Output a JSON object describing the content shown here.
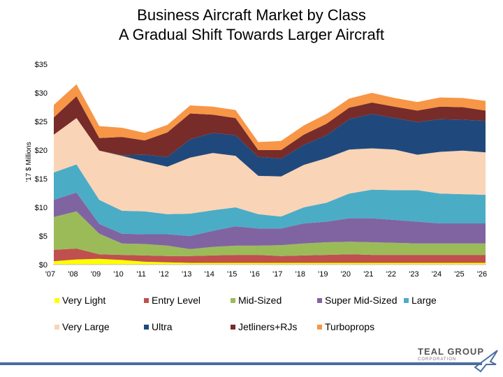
{
  "chart_data": {
    "type": "area",
    "stacked": true,
    "title": "Business Aircraft Market by Class",
    "subtitle": "A Gradual Shift Towards Larger Aircraft",
    "ylabel": "'17 $ Millions",
    "xlabel": "",
    "ylim": [
      0,
      35
    ],
    "y_ticks": [
      "$0",
      "$5",
      "$10",
      "$15",
      "$20",
      "$25",
      "$30",
      "$35"
    ],
    "y_tick_values": [
      0,
      5,
      10,
      15,
      20,
      25,
      30,
      35
    ],
    "categories": [
      "'07",
      "'08",
      "'09",
      "'10",
      "'11",
      "'12",
      "'13",
      "'14",
      "'15",
      "'16",
      "'17",
      "'18",
      "'19",
      "'20",
      "'21",
      "'22",
      "'23",
      "'24",
      "'25",
      "'26"
    ],
    "series": [
      {
        "name": "Very Light",
        "color": "#ffff00",
        "values": [
          0.6,
          0.9,
          1.0,
          0.8,
          0.5,
          0.4,
          0.3,
          0.3,
          0.3,
          0.3,
          0.3,
          0.3,
          0.3,
          0.3,
          0.3,
          0.3,
          0.3,
          0.3,
          0.3,
          0.3
        ]
      },
      {
        "name": "Entry Level",
        "color": "#c0504d",
        "values": [
          2.0,
          1.9,
          0.8,
          0.9,
          1.1,
          1.1,
          1.2,
          1.3,
          1.4,
          1.4,
          1.2,
          1.3,
          1.4,
          1.5,
          1.4,
          1.4,
          1.4,
          1.4,
          1.4,
          1.4
        ]
      },
      {
        "name": "Mid-Sized",
        "color": "#9bbb59",
        "values": [
          5.7,
          6.5,
          3.6,
          2.0,
          2.0,
          1.8,
          1.2,
          1.5,
          1.6,
          1.6,
          1.9,
          2.1,
          2.2,
          2.2,
          2.2,
          2.1,
          2.0,
          2.0,
          2.0,
          2.0
        ]
      },
      {
        "name": "Super Mid-Sized",
        "color": "#8064a2",
        "values": [
          3.0,
          3.3,
          1.7,
          1.7,
          1.7,
          2.0,
          2.3,
          2.8,
          3.4,
          3.0,
          2.9,
          3.5,
          3.6,
          4.1,
          4.2,
          4.0,
          3.8,
          3.5,
          3.5,
          3.5
        ]
      },
      {
        "name": "Large",
        "color": "#4bacc6",
        "values": [
          4.8,
          4.9,
          4.2,
          4.0,
          4.0,
          3.5,
          3.9,
          3.6,
          3.3,
          2.5,
          2.1,
          2.8,
          3.3,
          4.3,
          5.0,
          5.2,
          5.5,
          5.2,
          5.1,
          5.0
        ]
      },
      {
        "name": "Very Large",
        "color": "#fad4b6",
        "values": [
          6.6,
          8.1,
          8.6,
          9.6,
          8.7,
          8.3,
          9.8,
          10.0,
          9.0,
          6.7,
          7.0,
          7.4,
          7.8,
          7.7,
          7.2,
          7.1,
          6.2,
          7.3,
          7.6,
          7.4
        ]
      },
      {
        "name": "Ultra",
        "color": "#1f497d",
        "values": [
          0.0,
          0.0,
          0.0,
          0.1,
          1.2,
          1.7,
          3.2,
          3.5,
          3.6,
          3.3,
          3.1,
          3.5,
          4.0,
          5.3,
          6.0,
          5.5,
          5.7,
          5.7,
          5.4,
          5.5
        ]
      },
      {
        "name": "Jetliners+RJs",
        "color": "#772c2a",
        "values": [
          3.0,
          3.8,
          2.2,
          3.2,
          2.5,
          4.3,
          4.5,
          3.2,
          3.0,
          1.2,
          1.5,
          1.8,
          2.0,
          2.0,
          2.0,
          2.0,
          2.0,
          2.2,
          2.2,
          1.8
        ]
      },
      {
        "name": "Turboprops",
        "color": "#f79646",
        "values": [
          2.2,
          2.1,
          2.1,
          1.6,
          1.3,
          1.3,
          1.4,
          1.4,
          1.4,
          1.4,
          1.6,
          1.6,
          1.7,
          1.6,
          1.7,
          1.5,
          1.5,
          1.6,
          1.6,
          1.7
        ]
      }
    ],
    "legend": {
      "position": "bottom"
    }
  },
  "logo": {
    "name": "TEAL GROUP",
    "sub": "CORPORATION"
  }
}
